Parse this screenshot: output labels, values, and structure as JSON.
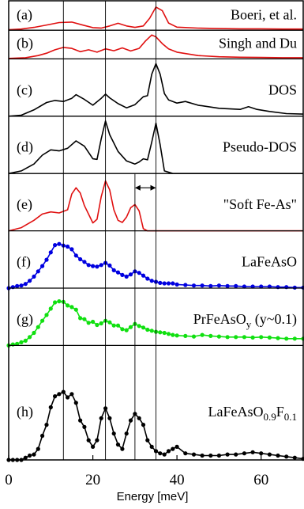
{
  "chart_data": {
    "type": "line",
    "xlabel": "Energy  [meV]",
    "xlim": [
      0,
      70
    ],
    "x_ticks": [
      0,
      20,
      40,
      60
    ],
    "reference_lines_x": [
      13,
      23,
      35
    ],
    "marker_line_x": 30,
    "double_arrow_x": [
      30,
      35
    ],
    "panels": [
      {
        "tag": "(a)",
        "label": "Boeri, et al.",
        "color": "#e01010",
        "markers": false,
        "top": 0,
        "height": 40,
        "points": [
          [
            0,
            2
          ],
          [
            3,
            5
          ],
          [
            6,
            12
          ],
          [
            9,
            22
          ],
          [
            12,
            32
          ],
          [
            15,
            34
          ],
          [
            18,
            20
          ],
          [
            20,
            11
          ],
          [
            22,
            9
          ],
          [
            24,
            18
          ],
          [
            26,
            29
          ],
          [
            28,
            18
          ],
          [
            30,
            12
          ],
          [
            32,
            18
          ],
          [
            33.5,
            50
          ],
          [
            35,
            97
          ],
          [
            36.5,
            82
          ],
          [
            38,
            30
          ],
          [
            40,
            13
          ],
          [
            45,
            9
          ],
          [
            50,
            7
          ],
          [
            55,
            6
          ],
          [
            60,
            6
          ],
          [
            65,
            5
          ],
          [
            70,
            5
          ]
        ]
      },
      {
        "tag": "(b)",
        "label": "Singh and Du",
        "color": "#e01010",
        "markers": false,
        "top": 40,
        "height": 40,
        "points": [
          [
            0,
            2
          ],
          [
            4,
            5
          ],
          [
            7,
            14
          ],
          [
            9,
            24
          ],
          [
            11,
            38
          ],
          [
            13,
            48
          ],
          [
            15,
            44
          ],
          [
            17,
            30
          ],
          [
            19,
            38
          ],
          [
            21,
            28
          ],
          [
            23,
            42
          ],
          [
            25,
            34
          ],
          [
            27,
            46
          ],
          [
            29,
            33
          ],
          [
            31,
            44
          ],
          [
            32.5,
            75
          ],
          [
            34,
            100
          ],
          [
            35,
            92
          ],
          [
            36.5,
            64
          ],
          [
            38,
            42
          ],
          [
            40,
            28
          ],
          [
            45,
            14
          ],
          [
            50,
            9
          ],
          [
            55,
            7
          ],
          [
            60,
            6
          ],
          [
            65,
            5
          ],
          [
            70,
            5
          ]
        ]
      },
      {
        "tag": "(c)",
        "label": "DOS",
        "color": "#000000",
        "markers": false,
        "top": 80,
        "height": 80,
        "points": [
          [
            0,
            0
          ],
          [
            3,
            2
          ],
          [
            6,
            12
          ],
          [
            9,
            26
          ],
          [
            11,
            30
          ],
          [
            13,
            28
          ],
          [
            15,
            34
          ],
          [
            16,
            41
          ],
          [
            18,
            32
          ],
          [
            20,
            21
          ],
          [
            22,
            34
          ],
          [
            23,
            42
          ],
          [
            24,
            35
          ],
          [
            26,
            24
          ],
          [
            28,
            16
          ],
          [
            30,
            22
          ],
          [
            32,
            37
          ],
          [
            33,
            39
          ],
          [
            34,
            80
          ],
          [
            35,
            100
          ],
          [
            36,
            80
          ],
          [
            37,
            43
          ],
          [
            38,
            31
          ],
          [
            40,
            25
          ],
          [
            42,
            28
          ],
          [
            45,
            21
          ],
          [
            50,
            15
          ],
          [
            55,
            13
          ],
          [
            57,
            18
          ],
          [
            59,
            13
          ],
          [
            62,
            9
          ],
          [
            66,
            5
          ],
          [
            70,
            4
          ]
        ]
      },
      {
        "tag": "(d)",
        "label": "Pseudo-DOS",
        "color": "#000000",
        "markers": false,
        "top": 160,
        "height": 80,
        "points": [
          [
            0,
            0
          ],
          [
            3,
            5
          ],
          [
            6,
            18
          ],
          [
            8,
            35
          ],
          [
            10,
            45
          ],
          [
            12,
            43
          ],
          [
            14,
            48
          ],
          [
            16,
            62
          ],
          [
            18,
            52
          ],
          [
            20,
            28
          ],
          [
            21,
            27
          ],
          [
            22,
            66
          ],
          [
            23,
            100
          ],
          [
            24,
            74
          ],
          [
            26,
            42
          ],
          [
            28,
            24
          ],
          [
            30,
            18
          ],
          [
            31,
            22
          ],
          [
            32,
            28
          ],
          [
            33,
            26
          ],
          [
            34,
            60
          ],
          [
            35,
            96
          ],
          [
            36,
            55
          ],
          [
            37,
            5
          ],
          [
            39,
            0
          ],
          [
            70,
            0
          ]
        ]
      },
      {
        "tag": "(e)",
        "label": "\"Soft Fe-As\"",
        "color": "#e01010",
        "markers": false,
        "top": 240,
        "height": 80,
        "points": [
          [
            0,
            0
          ],
          [
            3,
            6
          ],
          [
            6,
            20
          ],
          [
            8,
            32
          ],
          [
            10,
            36
          ],
          [
            12,
            34
          ],
          [
            14,
            40
          ],
          [
            15,
            70
          ],
          [
            16,
            82
          ],
          [
            17,
            72
          ],
          [
            18,
            48
          ],
          [
            20,
            15
          ],
          [
            21,
            22
          ],
          [
            22,
            65
          ],
          [
            23,
            95
          ],
          [
            24,
            78
          ],
          [
            25,
            40
          ],
          [
            26,
            20
          ],
          [
            27,
            16
          ],
          [
            28,
            26
          ],
          [
            29,
            44
          ],
          [
            30,
            50
          ],
          [
            31,
            38
          ],
          [
            32,
            4
          ],
          [
            33,
            0
          ],
          [
            70,
            0
          ]
        ]
      },
      {
        "tag": "(f)",
        "label": "LaFeAsO",
        "color": "#0000e0",
        "markers": true,
        "top": 320,
        "height": 80,
        "points": [
          [
            0,
            0
          ],
          [
            1,
            2
          ],
          [
            2,
            4
          ],
          [
            3,
            5
          ],
          [
            4,
            8
          ],
          [
            5,
            14
          ],
          [
            6,
            22
          ],
          [
            7,
            32
          ],
          [
            8,
            42
          ],
          [
            9,
            54
          ],
          [
            10,
            68
          ],
          [
            11,
            82
          ],
          [
            12,
            84
          ],
          [
            13,
            81
          ],
          [
            14,
            79
          ],
          [
            15,
            74
          ],
          [
            16,
            62
          ],
          [
            17,
            55
          ],
          [
            18,
            50
          ],
          [
            19,
            44
          ],
          [
            20,
            42
          ],
          [
            21,
            41
          ],
          [
            22,
            44
          ],
          [
            23,
            48
          ],
          [
            24,
            43
          ],
          [
            25,
            34
          ],
          [
            26,
            30
          ],
          [
            27,
            25
          ],
          [
            28,
            22
          ],
          [
            29,
            26
          ],
          [
            30,
            32
          ],
          [
            31,
            29
          ],
          [
            32,
            24
          ],
          [
            33,
            18
          ],
          [
            34,
            14
          ],
          [
            35,
            12
          ],
          [
            36,
            10
          ],
          [
            37,
            9
          ],
          [
            38,
            9
          ],
          [
            39,
            9
          ],
          [
            40,
            7
          ],
          [
            42,
            6
          ],
          [
            44,
            5
          ],
          [
            46,
            5
          ],
          [
            48,
            4
          ],
          [
            50,
            5
          ],
          [
            52,
            4
          ],
          [
            54,
            4
          ],
          [
            56,
            3
          ],
          [
            58,
            3
          ],
          [
            60,
            3
          ],
          [
            62,
            3
          ],
          [
            64,
            2
          ],
          [
            66,
            2
          ],
          [
            68,
            1
          ],
          [
            70,
            1
          ]
        ]
      },
      {
        "tag": "(g)",
        "label": "PrFeAsO",
        "label_sub": "y",
        "label_after": " (y~0.1)",
        "color": "#10e010",
        "markers": true,
        "top": 400,
        "height": 80,
        "points": [
          [
            0,
            0
          ],
          [
            1,
            2
          ],
          [
            2,
            3
          ],
          [
            3,
            6
          ],
          [
            4,
            9
          ],
          [
            5,
            16
          ],
          [
            6,
            24
          ],
          [
            7,
            35
          ],
          [
            8,
            47
          ],
          [
            9,
            58
          ],
          [
            10,
            70
          ],
          [
            11,
            82
          ],
          [
            12,
            84
          ],
          [
            13,
            83
          ],
          [
            14,
            76
          ],
          [
            15,
            73
          ],
          [
            16,
            68
          ],
          [
            17,
            52
          ],
          [
            18,
            50
          ],
          [
            19,
            43
          ],
          [
            20,
            45
          ],
          [
            21,
            39
          ],
          [
            22,
            42
          ],
          [
            23,
            47
          ],
          [
            24,
            44
          ],
          [
            25,
            38
          ],
          [
            26,
            38
          ],
          [
            27,
            31
          ],
          [
            28,
            29
          ],
          [
            29,
            35
          ],
          [
            30,
            41
          ],
          [
            31,
            37
          ],
          [
            32,
            34
          ],
          [
            33,
            30
          ],
          [
            34,
            28
          ],
          [
            35,
            26
          ],
          [
            36,
            25
          ],
          [
            37,
            24
          ],
          [
            38,
            22
          ],
          [
            39,
            20
          ],
          [
            40,
            19
          ],
          [
            42,
            18
          ],
          [
            44,
            17
          ],
          [
            46,
            20
          ],
          [
            48,
            18
          ],
          [
            50,
            17
          ],
          [
            52,
            16
          ],
          [
            54,
            16
          ],
          [
            56,
            16
          ],
          [
            58,
            15
          ],
          [
            60,
            16
          ],
          [
            62,
            15
          ],
          [
            64,
            14
          ],
          [
            66,
            13
          ],
          [
            68,
            13
          ],
          [
            70,
            13
          ]
        ]
      },
      {
        "tag": "(h)",
        "label": "LaFeAsO",
        "label_sub": "0.9",
        "label_after": "F",
        "label_sub2": "0.1",
        "color": "#000000",
        "markers": true,
        "top": 480,
        "height": 80,
        "points": [
          [
            0,
            0
          ],
          [
            1,
            0
          ],
          [
            2,
            0
          ],
          [
            3,
            0
          ],
          [
            4,
            2
          ],
          [
            5,
            4
          ],
          [
            6,
            5
          ],
          [
            7,
            10
          ],
          [
            8,
            22
          ],
          [
            9,
            32
          ],
          [
            10,
            48
          ],
          [
            11,
            58
          ],
          [
            12,
            60
          ],
          [
            13,
            62
          ],
          [
            14,
            57
          ],
          [
            15,
            60
          ],
          [
            16,
            52
          ],
          [
            17,
            36
          ],
          [
            18,
            30
          ],
          [
            19,
            18
          ],
          [
            20,
            12
          ],
          [
            21,
            18
          ],
          [
            22,
            38
          ],
          [
            23,
            47
          ],
          [
            24,
            38
          ],
          [
            25,
            24
          ],
          [
            26,
            14
          ],
          [
            27,
            10
          ],
          [
            28,
            24
          ],
          [
            29,
            36
          ],
          [
            30,
            42
          ],
          [
            31,
            38
          ],
          [
            32,
            32
          ],
          [
            33,
            18
          ],
          [
            34,
            12
          ],
          [
            35,
            8
          ],
          [
            36,
            6
          ],
          [
            37,
            5
          ],
          [
            38,
            8
          ],
          [
            39,
            10
          ],
          [
            40,
            12
          ],
          [
            42,
            6
          ],
          [
            44,
            5
          ],
          [
            46,
            4
          ],
          [
            48,
            4
          ],
          [
            50,
            4
          ],
          [
            52,
            5
          ],
          [
            54,
            5
          ],
          [
            56,
            6
          ],
          [
            58,
            7
          ],
          [
            60,
            6
          ],
          [
            62,
            5
          ],
          [
            64,
            4
          ],
          [
            66,
            3
          ],
          [
            68,
            2
          ],
          [
            70,
            1
          ]
        ]
      }
    ]
  }
}
